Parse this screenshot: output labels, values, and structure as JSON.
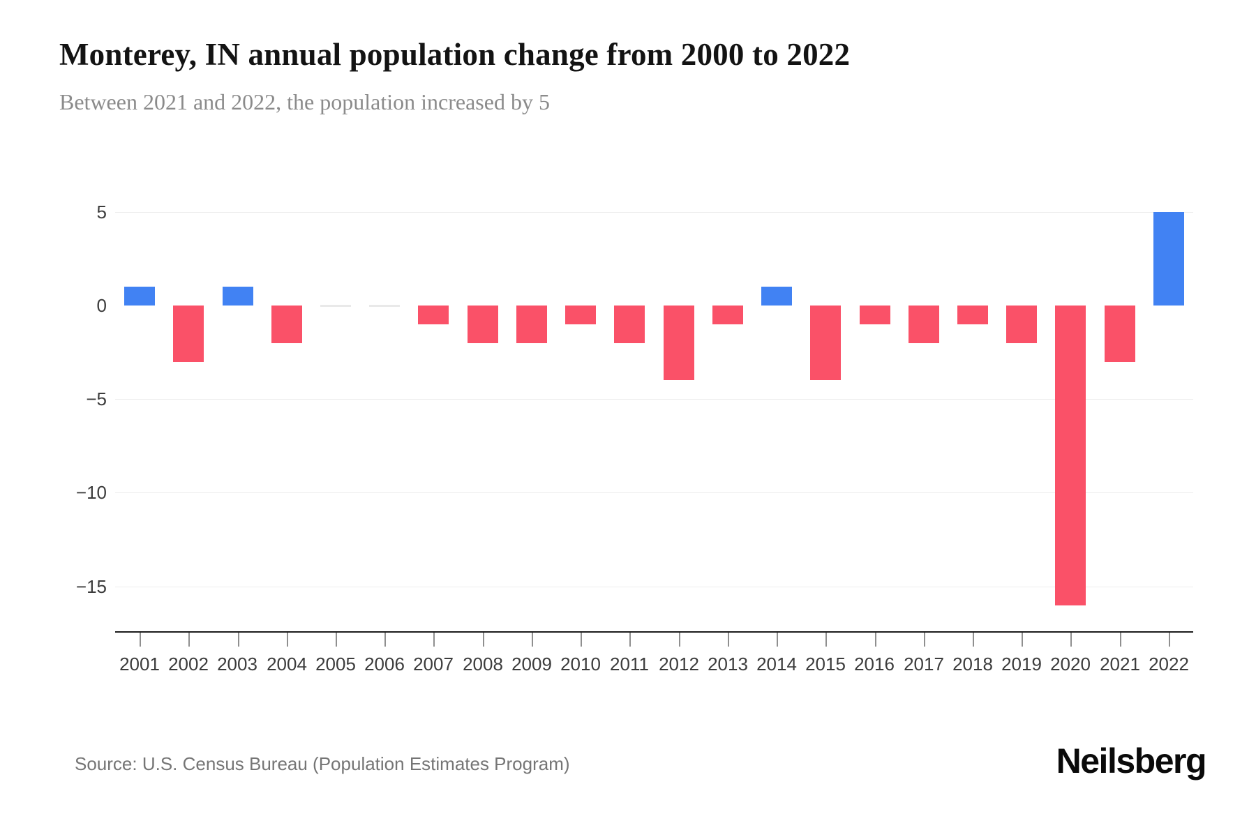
{
  "header": {
    "title": "Monterey, IN annual population change from 2000 to 2022",
    "subtitle": "Between 2021 and 2022, the population increased by 5"
  },
  "chart_data": {
    "type": "bar",
    "title": "Monterey, IN annual population change from 2000 to 2022",
    "subtitle": "Between 2021 and 2022, the population increased by 5",
    "categories": [
      "2001",
      "2002",
      "2003",
      "2004",
      "2005",
      "2006",
      "2007",
      "2008",
      "2009",
      "2010",
      "2011",
      "2012",
      "2013",
      "2014",
      "2015",
      "2016",
      "2017",
      "2018",
      "2019",
      "2020",
      "2021",
      "2022"
    ],
    "values": [
      1,
      -3,
      1,
      -2,
      0,
      0,
      -1,
      -2,
      -2,
      -1,
      -2,
      -4,
      -1,
      1,
      -4,
      -1,
      -2,
      -1,
      -2,
      -16,
      -3,
      5
    ],
    "xlabel": "",
    "ylabel": "",
    "y_ticks": [
      5,
      0,
      -5,
      -10,
      -15
    ],
    "ylim": [
      -17.4,
      6.7
    ],
    "grid": "horizontal",
    "legend": "none",
    "colors": {
      "positive": "#4182f3",
      "negative": "#fa5168",
      "zero": "#e9e9e9",
      "gridline": "#ededed",
      "axis": "#1b1b1b",
      "tick": "#8f8f8f"
    }
  },
  "footer": {
    "source": "Source: U.S. Census Bureau (Population Estimates Program)",
    "logo": "Neilsberg"
  }
}
